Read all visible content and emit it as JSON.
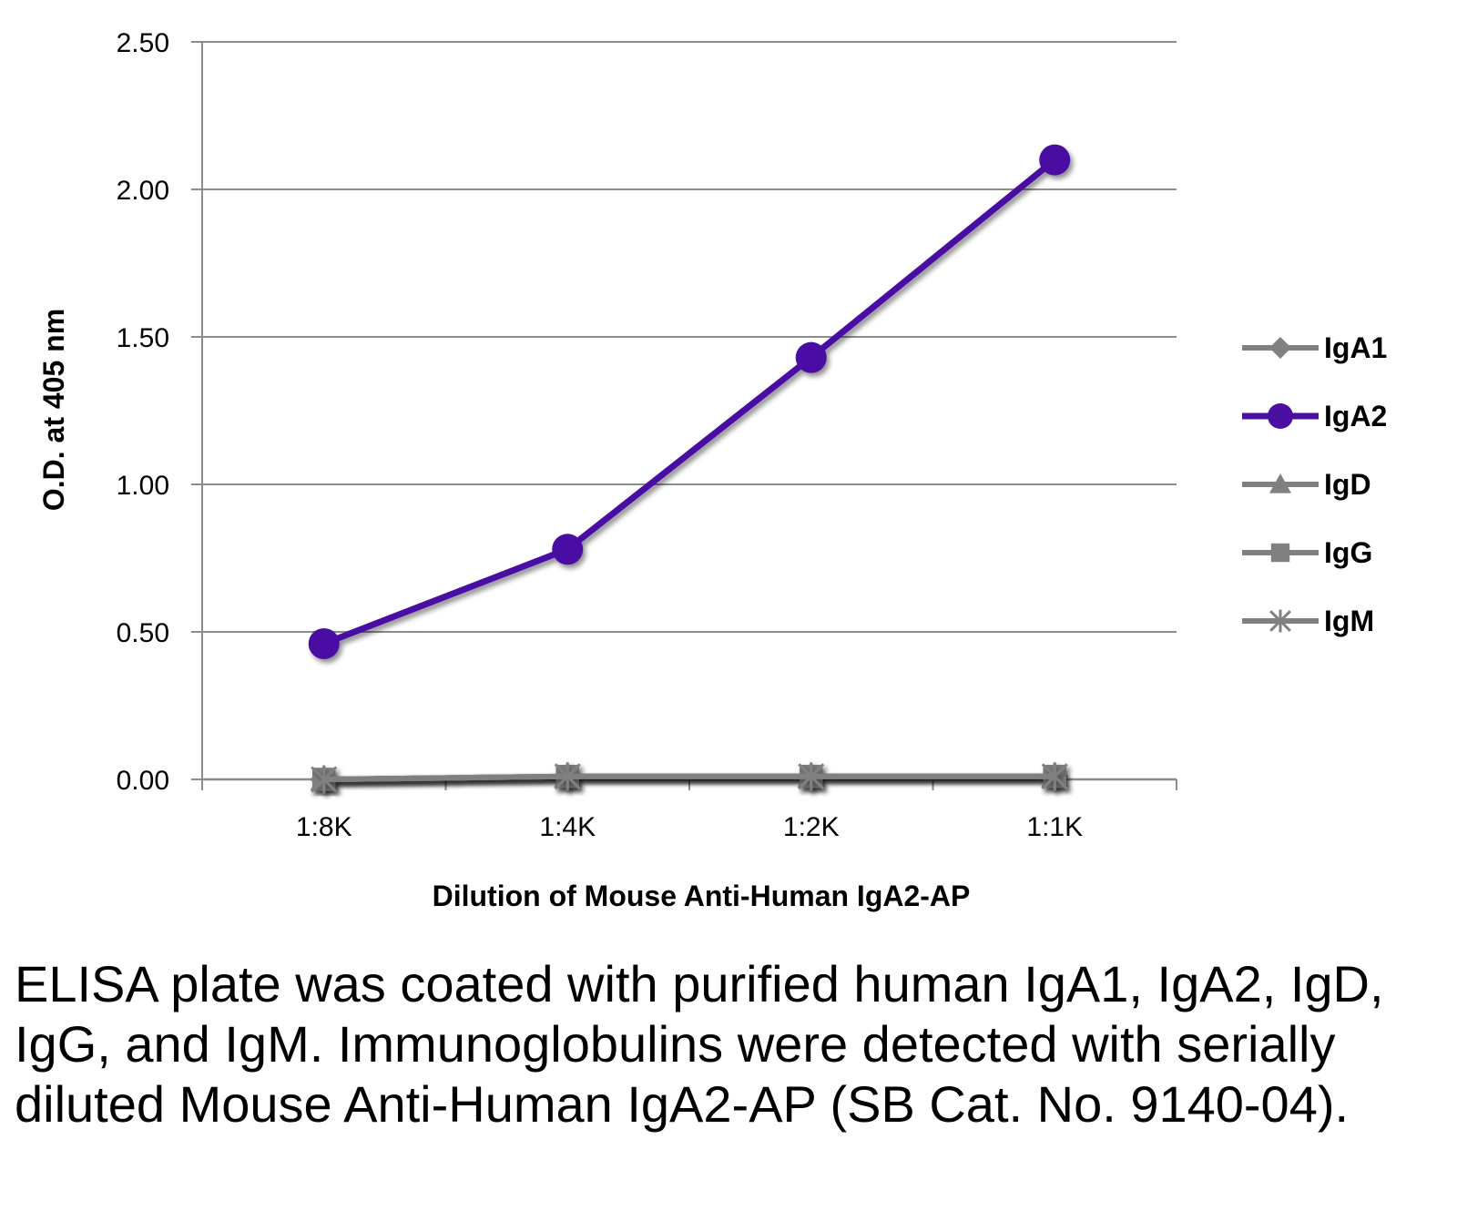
{
  "chart_data": {
    "type": "line",
    "xlabel": "Dilution of Mouse Anti-Human IgA2-AP",
    "ylabel": "O.D. at 405 nm",
    "categories": [
      "1:8K",
      "1:4K",
      "1:2K",
      "1:1K"
    ],
    "ylim": [
      0,
      2.5
    ],
    "yticks": [
      "0.00",
      "0.50",
      "1.00",
      "1.50",
      "2.00",
      "2.50"
    ],
    "grid": "horizontal",
    "legend_position": "right",
    "series": [
      {
        "name": "IgA1",
        "marker": "diamond",
        "color": "#808080",
        "values": [
          0.0,
          0.01,
          0.01,
          0.01
        ]
      },
      {
        "name": "IgA2",
        "marker": "circle",
        "color": "#4a0fa3",
        "values": [
          0.46,
          0.78,
          1.43,
          2.1
        ]
      },
      {
        "name": "IgD",
        "marker": "triangle",
        "color": "#808080",
        "values": [
          0.0,
          0.01,
          0.01,
          0.01
        ]
      },
      {
        "name": "IgG",
        "marker": "square",
        "color": "#808080",
        "values": [
          0.0,
          0.01,
          0.01,
          0.01
        ]
      },
      {
        "name": "IgM",
        "marker": "asterisk",
        "color": "#808080",
        "values": [
          0.0,
          0.01,
          0.01,
          0.01
        ]
      }
    ]
  },
  "caption": "ELISA plate was coated with purified human IgA1, IgA2, IgD, IgG, and IgM.  Immunoglobulins were detected with serially diluted Mouse Anti-Human IgA2-AP (SB Cat. No. 9140-04)."
}
